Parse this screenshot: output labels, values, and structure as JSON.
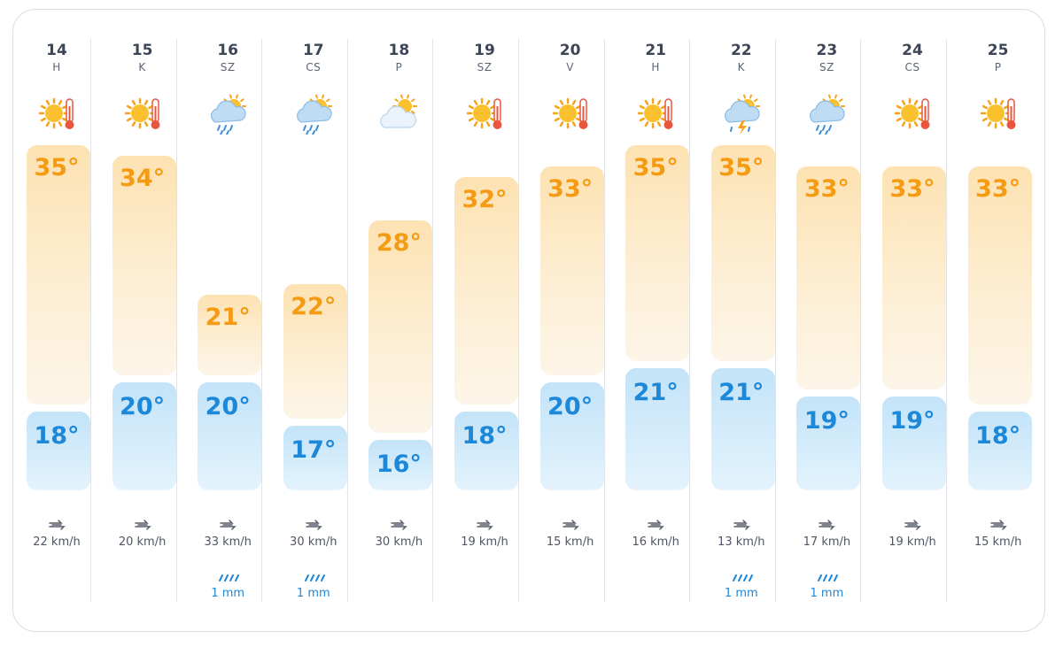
{
  "days": [
    {
      "date": "14",
      "dow": "H",
      "icon": "sun-thermometer-icon",
      "max": "35°",
      "min": "18°",
      "max_temp": 35,
      "min_temp": 18,
      "wind": "22 km/h",
      "rain": ""
    },
    {
      "date": "15",
      "dow": "K",
      "icon": "sun-thermometer-icon",
      "max": "34°",
      "min": "20°",
      "max_temp": 34,
      "min_temp": 20,
      "wind": "20 km/h",
      "rain": ""
    },
    {
      "date": "16",
      "dow": "SZ",
      "icon": "rain-cloud-sun-icon",
      "max": "21°",
      "min": "20°",
      "max_temp": 21,
      "min_temp": 20,
      "wind": "33 km/h",
      "rain": "1 mm"
    },
    {
      "date": "17",
      "dow": "CS",
      "icon": "rain-cloud-sun-icon",
      "max": "22°",
      "min": "17°",
      "max_temp": 22,
      "min_temp": 17,
      "wind": "30 km/h",
      "rain": "1 mm"
    },
    {
      "date": "18",
      "dow": "P",
      "icon": "cloud-sun-icon",
      "max": "28°",
      "min": "16°",
      "max_temp": 28,
      "min_temp": 16,
      "wind": "30 km/h",
      "rain": ""
    },
    {
      "date": "19",
      "dow": "SZ",
      "icon": "sun-thermometer-icon",
      "max": "32°",
      "min": "18°",
      "max_temp": 32,
      "min_temp": 18,
      "wind": "19 km/h",
      "rain": ""
    },
    {
      "date": "20",
      "dow": "V",
      "icon": "sun-thermometer-icon",
      "max": "33°",
      "min": "20°",
      "max_temp": 33,
      "min_temp": 20,
      "wind": "15 km/h",
      "rain": ""
    },
    {
      "date": "21",
      "dow": "H",
      "icon": "sun-thermometer-icon",
      "max": "35°",
      "min": "21°",
      "max_temp": 35,
      "min_temp": 21,
      "wind": "16 km/h",
      "rain": ""
    },
    {
      "date": "22",
      "dow": "K",
      "icon": "thunderstorm-cloud-icon",
      "max": "35°",
      "min": "21°",
      "max_temp": 35,
      "min_temp": 21,
      "wind": "13 km/h",
      "rain": "1 mm"
    },
    {
      "date": "23",
      "dow": "SZ",
      "icon": "rain-cloud-sun-icon",
      "max": "33°",
      "min": "19°",
      "max_temp": 33,
      "min_temp": 19,
      "wind": "17 km/h",
      "rain": "1 mm"
    },
    {
      "date": "24",
      "dow": "CS",
      "icon": "sun-thermometer-icon",
      "max": "33°",
      "min": "19°",
      "max_temp": 33,
      "min_temp": 19,
      "wind": "19 km/h",
      "rain": ""
    },
    {
      "date": "25",
      "dow": "P",
      "icon": "sun-thermometer-icon",
      "max": "33°",
      "min": "18°",
      "max_temp": 33,
      "min_temp": 18,
      "wind": "15 km/h",
      "rain": ""
    }
  ],
  "colors": {
    "max_text": "#f59b13",
    "min_text": "#1d87d8",
    "rain_text": "#1d87d8"
  }
}
